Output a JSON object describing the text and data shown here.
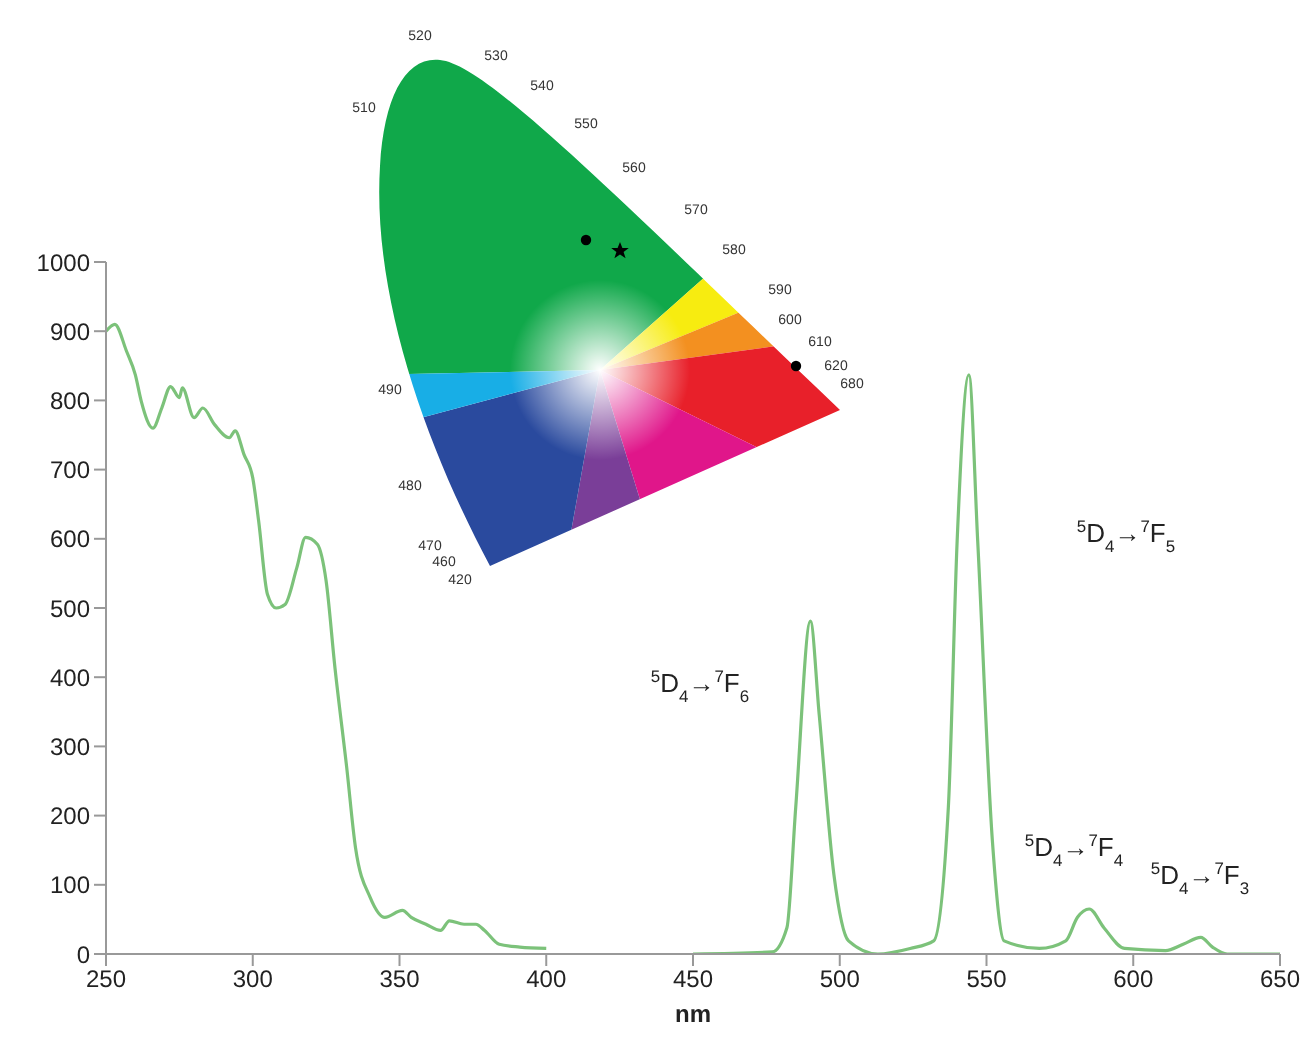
{
  "chart_data": {
    "type": "line",
    "xlabel": "nm",
    "xlim": [
      250,
      650
    ],
    "xticks": [
      250,
      300,
      350,
      400,
      450,
      500,
      550,
      600,
      650
    ],
    "ylim": [
      0,
      1000
    ],
    "yticks": [
      0,
      100,
      200,
      300,
      400,
      500,
      600,
      700,
      800,
      900,
      1000
    ],
    "marker": "none",
    "line_style": "solid",
    "series": [
      {
        "color": "#7cc27a",
        "x": [
          250,
          253,
          257,
          260,
          262,
          266,
          269,
          272,
          275,
          276,
          280,
          283,
          287,
          292,
          294,
          297,
          300,
          302,
          305,
          308,
          311,
          315,
          318,
          322,
          325,
          328,
          332,
          335,
          340,
          345,
          351,
          354,
          359,
          364,
          367,
          372,
          376,
          379,
          384,
          391,
          400
        ],
        "values": [
          900,
          910,
          871,
          837,
          799,
          760,
          789,
          820,
          804,
          818,
          775,
          789,
          765,
          746,
          756,
          722,
          688,
          626,
          520,
          500,
          505,
          558,
          602,
          592,
          539,
          414,
          270,
          154,
          82,
          53,
          63,
          53,
          43,
          34,
          48,
          43,
          43,
          34,
          14,
          10,
          8
        ]
      },
      {
        "color": "#7cc27a",
        "x": [
          450,
          477,
          482,
          485,
          490,
          493,
          498,
          503,
          513,
          524,
          532,
          537,
          540,
          544,
          547,
          552,
          556,
          568,
          577,
          581,
          585,
          590,
          597,
          611,
          617,
          623,
          627,
          632,
          650
        ],
        "values": [
          0,
          3,
          38,
          212,
          481,
          346,
          115,
          19,
          0,
          8,
          19,
          212,
          597,
          837,
          597,
          164,
          19,
          8,
          19,
          53,
          65,
          38,
          8,
          5,
          14,
          24,
          10,
          0,
          0
        ]
      }
    ],
    "annotations": [
      "$^{5}$D$_{4}$→$^{7}$F$_{6}$",
      "$^{5}$D$_{4}$→$^{7}$F$_{5}$",
      "$^{5}$D$_{4}$→$^{7}$F$_{4}$",
      "$^{5}$D$_{4}$→$^{7}$F$_{3}$",
      "520",
      "530",
      "540",
      "550",
      "560",
      "570",
      "580",
      "590",
      "600",
      "610",
      "620",
      "680",
      "510",
      "490",
      "480",
      "470",
      "460",
      "420"
    ]
  }
}
